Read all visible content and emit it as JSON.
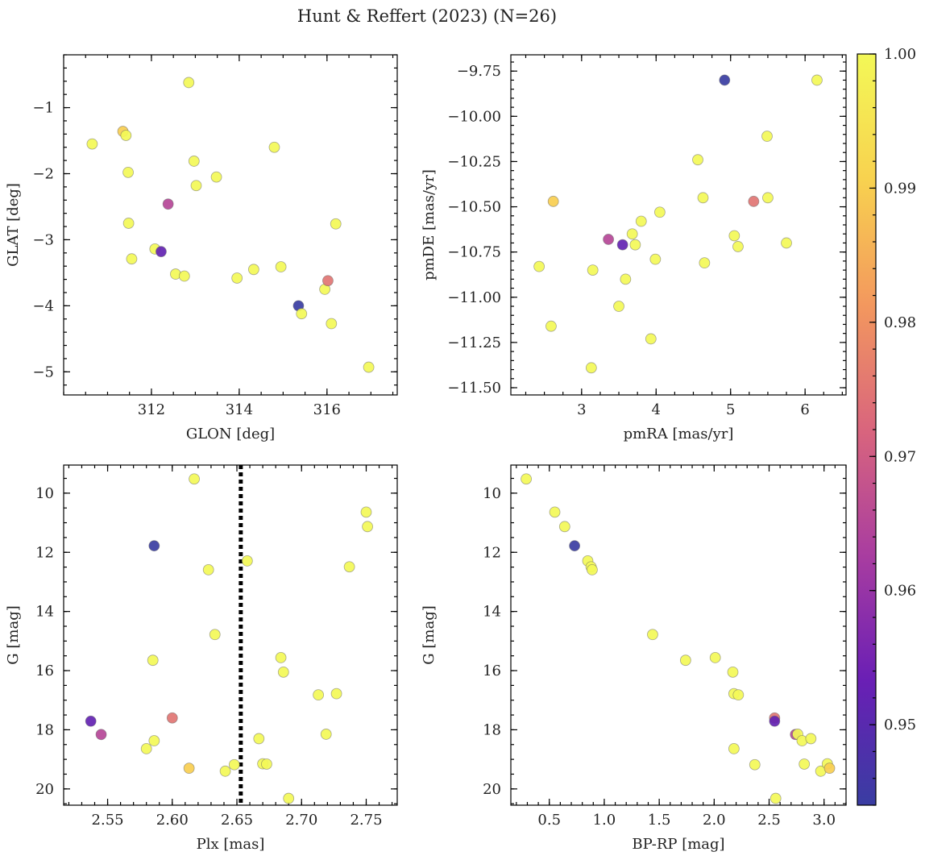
{
  "chart_data": {
    "title": "Hunt & Reffert (2023) (N=26)",
    "type": "scatter",
    "colorbar": {
      "range": [
        0.944,
        1.0
      ],
      "ticks": [
        0.95,
        0.96,
        0.97,
        0.98,
        0.99,
        1.0
      ],
      "tick_labels": [
        "0.95",
        "0.96",
        "0.97",
        "0.98",
        "0.99",
        "1.00"
      ],
      "colormap": "plasma",
      "stops": [
        "#393da2",
        "#6a1fb5",
        "#a93da0",
        "#d9657d",
        "#f3985e",
        "#f8d24f",
        "#f3f857"
      ]
    },
    "panels": [
      {
        "id": "glon-glat",
        "xlabel": "GLON [deg]",
        "ylabel": "GLAT [deg]",
        "xlim": [
          310.0,
          317.6
        ],
        "ylim": [
          -5.35,
          -0.2
        ],
        "y_inverted": false,
        "xticks": [
          312,
          314,
          316
        ],
        "xtick_labels": [
          "312",
          "314",
          "316"
        ],
        "yticks": [
          -1,
          -2,
          -3,
          -4,
          -5
        ],
        "ytick_labels": [
          "−1",
          "−2",
          "−3",
          "−4",
          "−5"
        ],
        "x_minor_step": 0.5,
        "y_minor_step": 0.2,
        "vline": null,
        "points": [
          {
            "x": 310.65,
            "y": -1.55,
            "c": 1.0
          },
          {
            "x": 311.35,
            "y": -1.36,
            "c": 0.99
          },
          {
            "x": 311.42,
            "y": -1.42,
            "c": 1.0
          },
          {
            "x": 311.47,
            "y": -1.98,
            "c": 1.0
          },
          {
            "x": 311.48,
            "y": -2.75,
            "c": 1.0
          },
          {
            "x": 311.55,
            "y": -3.29,
            "c": 1.0
          },
          {
            "x": 312.08,
            "y": -3.14,
            "c": 1.0
          },
          {
            "x": 312.22,
            "y": -3.18,
            "c": 0.952
          },
          {
            "x": 312.38,
            "y": -2.46,
            "c": 0.965
          },
          {
            "x": 312.55,
            "y": -3.52,
            "c": 1.0
          },
          {
            "x": 312.75,
            "y": -3.55,
            "c": 1.0
          },
          {
            "x": 312.85,
            "y": -0.62,
            "c": 1.0
          },
          {
            "x": 312.97,
            "y": -1.81,
            "c": 1.0
          },
          {
            "x": 313.02,
            "y": -2.18,
            "c": 1.0
          },
          {
            "x": 313.48,
            "y": -2.05,
            "c": 1.0
          },
          {
            "x": 313.95,
            "y": -3.58,
            "c": 1.0
          },
          {
            "x": 314.33,
            "y": -3.45,
            "c": 1.0
          },
          {
            "x": 314.8,
            "y": -1.6,
            "c": 1.0
          },
          {
            "x": 314.95,
            "y": -3.41,
            "c": 1.0
          },
          {
            "x": 315.35,
            "y": -4.0,
            "c": 0.944
          },
          {
            "x": 315.42,
            "y": -4.12,
            "c": 1.0
          },
          {
            "x": 315.95,
            "y": -3.75,
            "c": 1.0
          },
          {
            "x": 316.02,
            "y": -3.62,
            "c": 0.975
          },
          {
            "x": 316.1,
            "y": -4.27,
            "c": 1.0
          },
          {
            "x": 316.2,
            "y": -2.76,
            "c": 1.0
          },
          {
            "x": 316.95,
            "y": -4.93,
            "c": 1.0
          }
        ]
      },
      {
        "id": "pmra-pmde",
        "xlabel": "pmRA [mas/yr]",
        "ylabel": "pmDE [mas/yr]",
        "xlim": [
          2.05,
          6.55
        ],
        "ylim": [
          -11.54,
          -9.66
        ],
        "y_inverted": false,
        "xticks": [
          3,
          4,
          5,
          6
        ],
        "xtick_labels": [
          "3",
          "4",
          "5",
          "6"
        ],
        "yticks": [
          -9.75,
          -10.0,
          -10.25,
          -10.5,
          -10.75,
          -11.0,
          -11.25,
          -11.5
        ],
        "ytick_labels": [
          "−9.75",
          "−10.00",
          "−10.25",
          "−10.50",
          "−10.75",
          "−11.00",
          "−11.25",
          "−11.50"
        ],
        "x_minor_step": 0.25,
        "y_minor_step": 0.05,
        "vline": null,
        "points": [
          {
            "x": 2.43,
            "y": -10.83,
            "c": 1.0
          },
          {
            "x": 2.59,
            "y": -11.16,
            "c": 1.0
          },
          {
            "x": 2.62,
            "y": -10.47,
            "c": 0.99
          },
          {
            "x": 3.13,
            "y": -11.39,
            "c": 1.0
          },
          {
            "x": 3.15,
            "y": -10.85,
            "c": 1.0
          },
          {
            "x": 3.36,
            "y": -10.68,
            "c": 0.965
          },
          {
            "x": 3.5,
            "y": -11.05,
            "c": 1.0
          },
          {
            "x": 3.55,
            "y": -10.71,
            "c": 0.952
          },
          {
            "x": 3.59,
            "y": -10.9,
            "c": 1.0
          },
          {
            "x": 3.68,
            "y": -10.65,
            "c": 1.0
          },
          {
            "x": 3.72,
            "y": -10.71,
            "c": 1.0
          },
          {
            "x": 3.8,
            "y": -10.58,
            "c": 1.0
          },
          {
            "x": 3.93,
            "y": -11.23,
            "c": 1.0
          },
          {
            "x": 3.99,
            "y": -10.79,
            "c": 1.0
          },
          {
            "x": 4.05,
            "y": -10.53,
            "c": 1.0
          },
          {
            "x": 4.56,
            "y": -10.24,
            "c": 1.0
          },
          {
            "x": 4.63,
            "y": -10.45,
            "c": 1.0
          },
          {
            "x": 4.65,
            "y": -10.81,
            "c": 1.0
          },
          {
            "x": 4.92,
            "y": -9.8,
            "c": 0.944
          },
          {
            "x": 5.05,
            "y": -10.66,
            "c": 1.0
          },
          {
            "x": 5.1,
            "y": -10.72,
            "c": 1.0
          },
          {
            "x": 5.31,
            "y": -10.47,
            "c": 0.975
          },
          {
            "x": 5.49,
            "y": -10.11,
            "c": 1.0
          },
          {
            "x": 5.5,
            "y": -10.45,
            "c": 1.0
          },
          {
            "x": 5.75,
            "y": -10.7,
            "c": 1.0
          },
          {
            "x": 6.16,
            "y": -9.8,
            "c": 1.0
          }
        ]
      },
      {
        "id": "plx-g",
        "xlabel": "Plx [mas]",
        "ylabel": "G [mag]",
        "xlim": [
          2.516,
          2.774
        ],
        "ylim": [
          20.55,
          9.05
        ],
        "y_inverted": true,
        "xticks": [
          2.55,
          2.6,
          2.65,
          2.7,
          2.75
        ],
        "xtick_labels": [
          "2.55",
          "2.60",
          "2.65",
          "2.70",
          "2.75"
        ],
        "yticks": [
          10,
          12,
          14,
          16,
          18,
          20
        ],
        "ytick_labels": [
          "10",
          "12",
          "14",
          "16",
          "18",
          "20"
        ],
        "x_minor_step": 0.01,
        "y_minor_step": 0.5,
        "vline": 2.653,
        "points": [
          {
            "x": 2.537,
            "y": 17.71,
            "c": 0.952
          },
          {
            "x": 2.545,
            "y": 18.16,
            "c": 0.965
          },
          {
            "x": 2.58,
            "y": 18.64,
            "c": 1.0
          },
          {
            "x": 2.585,
            "y": 15.65,
            "c": 1.0
          },
          {
            "x": 2.586,
            "y": 11.78,
            "c": 0.944
          },
          {
            "x": 2.586,
            "y": 18.37,
            "c": 1.0
          },
          {
            "x": 2.6,
            "y": 17.6,
            "c": 0.975
          },
          {
            "x": 2.613,
            "y": 19.3,
            "c": 0.99
          },
          {
            "x": 2.617,
            "y": 9.52,
            "c": 1.0
          },
          {
            "x": 2.628,
            "y": 12.59,
            "c": 1.0
          },
          {
            "x": 2.633,
            "y": 14.78,
            "c": 1.0
          },
          {
            "x": 2.641,
            "y": 19.4,
            "c": 1.0
          },
          {
            "x": 2.648,
            "y": 19.18,
            "c": 1.0
          },
          {
            "x": 2.658,
            "y": 12.29,
            "c": 1.0
          },
          {
            "x": 2.667,
            "y": 18.3,
            "c": 1.0
          },
          {
            "x": 2.67,
            "y": 19.15,
            "c": 1.0
          },
          {
            "x": 2.673,
            "y": 19.16,
            "c": 1.0
          },
          {
            "x": 2.684,
            "y": 15.56,
            "c": 1.0
          },
          {
            "x": 2.686,
            "y": 16.05,
            "c": 1.0
          },
          {
            "x": 2.69,
            "y": 20.32,
            "c": 1.0
          },
          {
            "x": 2.713,
            "y": 16.82,
            "c": 1.0
          },
          {
            "x": 2.719,
            "y": 18.15,
            "c": 1.0
          },
          {
            "x": 2.727,
            "y": 16.78,
            "c": 1.0
          },
          {
            "x": 2.737,
            "y": 12.49,
            "c": 1.0
          },
          {
            "x": 2.75,
            "y": 10.64,
            "c": 1.0
          },
          {
            "x": 2.751,
            "y": 11.13,
            "c": 1.0
          }
        ]
      },
      {
        "id": "bprp-g",
        "xlabel": "BP-RP [mag]",
        "ylabel": "G [mag]",
        "xlim": [
          0.15,
          3.2
        ],
        "ylim": [
          20.55,
          9.05
        ],
        "y_inverted": true,
        "xticks": [
          0.5,
          1.0,
          1.5,
          2.0,
          2.5,
          3.0
        ],
        "xtick_labels": [
          "0.5",
          "1.0",
          "1.5",
          "2.0",
          "2.5",
          "3.0"
        ],
        "yticks": [
          10,
          12,
          14,
          16,
          18,
          20
        ],
        "ytick_labels": [
          "10",
          "12",
          "14",
          "16",
          "18",
          "20"
        ],
        "x_minor_step": 0.1,
        "y_minor_step": 0.5,
        "vline": null,
        "points": [
          {
            "x": 0.29,
            "y": 9.52,
            "c": 1.0
          },
          {
            "x": 0.55,
            "y": 10.64,
            "c": 1.0
          },
          {
            "x": 0.64,
            "y": 11.13,
            "c": 1.0
          },
          {
            "x": 0.73,
            "y": 11.78,
            "c": 0.944
          },
          {
            "x": 0.85,
            "y": 12.29,
            "c": 1.0
          },
          {
            "x": 0.88,
            "y": 12.49,
            "c": 1.0
          },
          {
            "x": 0.89,
            "y": 12.59,
            "c": 1.0
          },
          {
            "x": 1.44,
            "y": 14.78,
            "c": 1.0
          },
          {
            "x": 1.74,
            "y": 15.65,
            "c": 1.0
          },
          {
            "x": 2.01,
            "y": 15.56,
            "c": 1.0
          },
          {
            "x": 2.17,
            "y": 16.05,
            "c": 1.0
          },
          {
            "x": 2.18,
            "y": 16.78,
            "c": 1.0
          },
          {
            "x": 2.22,
            "y": 16.82,
            "c": 1.0
          },
          {
            "x": 2.18,
            "y": 18.64,
            "c": 1.0
          },
          {
            "x": 2.37,
            "y": 19.18,
            "c": 1.0
          },
          {
            "x": 2.55,
            "y": 17.6,
            "c": 0.975
          },
          {
            "x": 2.55,
            "y": 17.71,
            "c": 0.952
          },
          {
            "x": 2.56,
            "y": 20.32,
            "c": 1.0
          },
          {
            "x": 2.74,
            "y": 18.16,
            "c": 0.965
          },
          {
            "x": 2.76,
            "y": 18.15,
            "c": 1.0
          },
          {
            "x": 2.8,
            "y": 18.37,
            "c": 1.0
          },
          {
            "x": 2.82,
            "y": 19.16,
            "c": 1.0
          },
          {
            "x": 2.88,
            "y": 18.3,
            "c": 1.0
          },
          {
            "x": 2.97,
            "y": 19.4,
            "c": 1.0
          },
          {
            "x": 3.03,
            "y": 19.15,
            "c": 1.0
          },
          {
            "x": 3.05,
            "y": 19.3,
            "c": 0.99
          }
        ]
      }
    ]
  }
}
